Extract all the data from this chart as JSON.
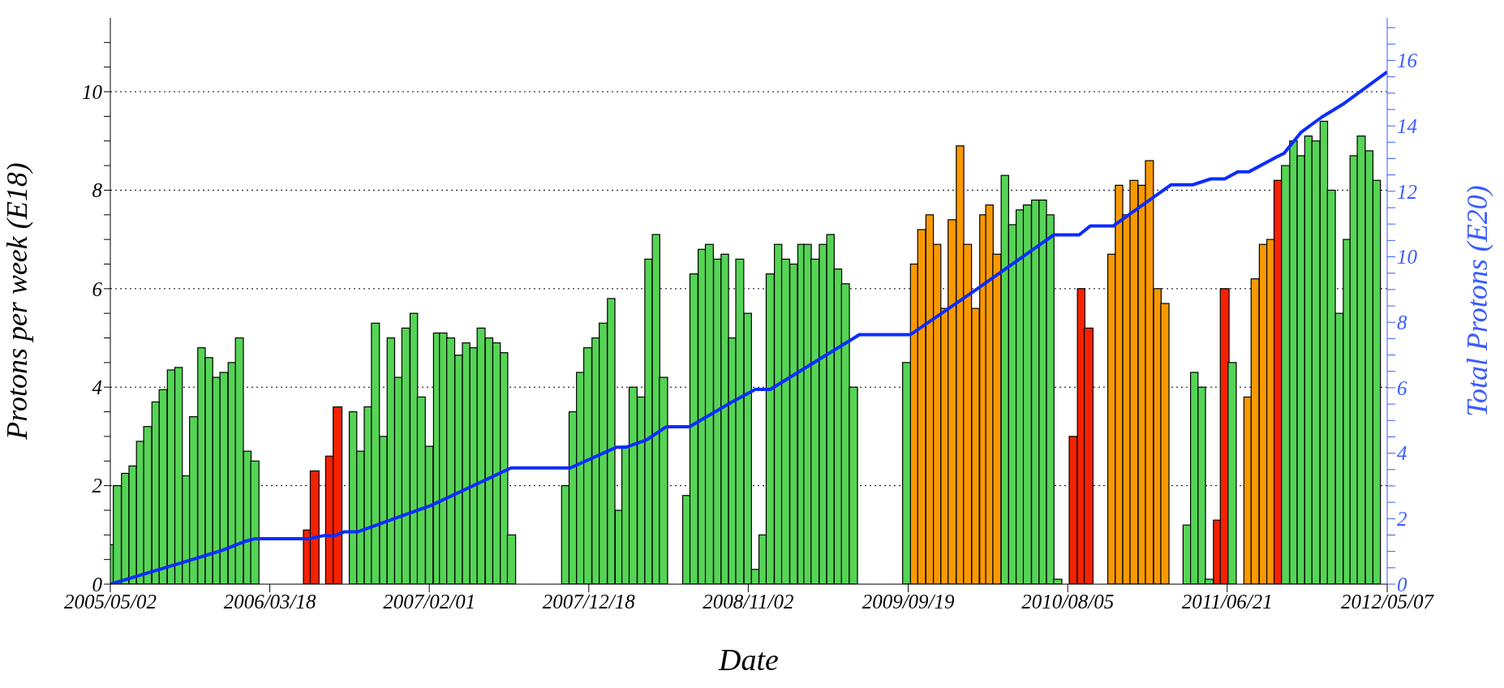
{
  "chart_data": {
    "type": "bar",
    "xlabel": "Date",
    "ylabel": "Protons per week (E18)",
    "y2label": "Total Protons (E20)",
    "xlim": [
      "2005-05-02",
      "2012-05-07"
    ],
    "xticks": [
      {
        "value": "2005-05-02",
        "label": "2005/05/02"
      },
      {
        "value": "2006-03-18",
        "label": "2006/03/18"
      },
      {
        "value": "2007-02-01",
        "label": "2007/02/01"
      },
      {
        "value": "2007-12-18",
        "label": "2007/12/18"
      },
      {
        "value": "2008-11-02",
        "label": "2008/11/02"
      },
      {
        "value": "2009-09-19",
        "label": "2009/09/19"
      },
      {
        "value": "2010-08-05",
        "label": "2010/08/05"
      },
      {
        "value": "2011-06-21",
        "label": "2011/06/21"
      },
      {
        "value": "2012-05-07",
        "label": "2012/05/07"
      }
    ],
    "ylim": [
      0,
      11.5
    ],
    "yticks": [
      0,
      {
        "value": 0.5,
        "label": null
      },
      {
        "value": 1,
        "label": null
      },
      {
        "value": 1.5,
        "label": null
      },
      2,
      {
        "value": 2.5,
        "label": null
      },
      {
        "value": 3,
        "label": null
      },
      {
        "value": 3.5,
        "label": null
      },
      4,
      {
        "value": 4.5,
        "label": null
      },
      {
        "value": 5,
        "label": null
      },
      {
        "value": 5.5,
        "label": null
      },
      6,
      {
        "value": 6.5,
        "label": null
      },
      {
        "value": 7,
        "label": null
      },
      {
        "value": 7.5,
        "label": null
      },
      8,
      {
        "value": 8.5,
        "label": null
      },
      {
        "value": 9,
        "label": null
      },
      {
        "value": 9.5,
        "label": null
      },
      10,
      {
        "value": 10.5,
        "label": null
      },
      {
        "value": 11,
        "label": null
      }
    ],
    "y2lim": [
      0,
      17.3
    ],
    "y2ticks": [
      0,
      {
        "value": 0.5,
        "label": null
      },
      {
        "value": 1,
        "label": null
      },
      {
        "value": 1.5,
        "label": null
      },
      2,
      {
        "value": 2.5,
        "label": null
      },
      {
        "value": 3,
        "label": null
      },
      {
        "value": 3.5,
        "label": null
      },
      4,
      {
        "value": 4.5,
        "label": null
      },
      {
        "value": 5,
        "label": null
      },
      {
        "value": 5.5,
        "label": null
      },
      6,
      {
        "value": 6.5,
        "label": null
      },
      {
        "value": 7,
        "label": null
      },
      {
        "value": 7.5,
        "label": null
      },
      8,
      {
        "value": 8.5,
        "label": null
      },
      {
        "value": 9,
        "label": null
      },
      {
        "value": 9.5,
        "label": null
      },
      10,
      {
        "value": 10.5,
        "label": null
      },
      {
        "value": 11,
        "label": null
      },
      {
        "value": 11.5,
        "label": null
      },
      12,
      {
        "value": 12.5,
        "label": null
      },
      {
        "value": 13,
        "label": null
      },
      {
        "value": 13.5,
        "label": null
      },
      14,
      {
        "value": 14.5,
        "label": null
      },
      {
        "value": 15,
        "label": null
      },
      {
        "value": 15.5,
        "label": null
      },
      16,
      {
        "value": 16.5,
        "label": null
      },
      {
        "value": 17,
        "label": null
      }
    ],
    "grid": "y",
    "series": [
      {
        "color": "#55d455",
        "x": [
          "2005-05-02",
          "2005-05-16",
          "2005-06-01",
          "2005-06-16",
          "2005-07-01",
          "2005-07-16",
          "2005-08-01",
          "2005-08-16",
          "2005-09-01",
          "2005-09-16",
          "2005-10-01",
          "2005-10-16",
          "2005-11-01",
          "2005-11-16",
          "2005-12-01",
          "2005-12-16",
          "2006-01-01",
          "2006-01-16",
          "2006-02-01",
          "2006-02-16",
          "2006-09-01",
          "2006-09-16",
          "2006-10-01",
          "2006-10-16",
          "2006-11-01",
          "2006-11-16",
          "2006-12-01",
          "2006-12-16",
          "2007-01-01",
          "2007-01-16",
          "2007-02-01",
          "2007-02-16",
          "2007-03-01",
          "2007-03-16",
          "2007-04-01",
          "2007-04-16",
          "2007-05-01",
          "2007-05-16",
          "2007-06-01",
          "2007-06-16",
          "2007-07-01",
          "2007-07-16",
          "2007-11-01",
          "2007-11-16",
          "2007-12-01",
          "2007-12-16",
          "2008-01-01",
          "2008-01-16",
          "2008-02-01",
          "2008-02-16",
          "2008-03-01",
          "2008-03-16",
          "2008-04-01",
          "2008-04-16",
          "2008-05-01",
          "2008-05-16",
          "2008-07-01",
          "2008-07-16",
          "2008-08-01",
          "2008-08-16",
          "2008-09-01",
          "2008-09-16",
          "2008-10-01",
          "2008-10-16",
          "2008-11-01",
          "2008-11-16",
          "2008-12-01",
          "2008-12-16",
          "2009-01-01",
          "2009-01-16",
          "2009-02-01",
          "2009-02-16",
          "2009-03-01",
          "2009-03-16",
          "2009-04-01",
          "2009-04-16",
          "2009-05-01",
          "2009-05-16",
          "2009-06-01",
          "2009-09-16",
          "2010-04-01",
          "2010-04-16",
          "2010-05-01",
          "2010-05-16",
          "2010-06-01",
          "2010-06-16",
          "2010-07-01",
          "2010-07-16",
          "2011-04-01",
          "2011-04-16",
          "2011-05-01",
          "2011-05-16",
          "2011-07-01",
          "2011-10-16",
          "2011-11-01",
          "2011-11-16",
          "2011-12-01",
          "2011-12-16",
          "2012-01-01",
          "2012-01-16",
          "2012-02-01",
          "2012-02-16",
          "2012-03-01",
          "2012-03-16",
          "2012-04-01",
          "2012-04-16"
        ],
        "values": [
          0.8,
          2.0,
          2.25,
          2.4,
          2.9,
          3.2,
          3.7,
          3.95,
          4.35,
          4.4,
          2.2,
          3.4,
          4.8,
          4.6,
          4.2,
          4.3,
          4.5,
          5.0,
          2.7,
          2.5,
          3.5,
          2.7,
          3.6,
          5.3,
          3.0,
          5.0,
          4.2,
          5.2,
          5.5,
          3.8,
          2.8,
          5.1,
          5.1,
          5.0,
          4.65,
          4.9,
          4.8,
          5.2,
          5.0,
          4.9,
          4.7,
          1.0,
          2.0,
          3.5,
          4.3,
          4.8,
          5.0,
          5.3,
          5.8,
          1.5,
          2.8,
          4.0,
          3.8,
          6.6,
          7.1,
          4.2,
          1.8,
          6.3,
          6.8,
          6.9,
          6.6,
          6.7,
          5.0,
          6.6,
          5.5,
          0.3,
          1.0,
          6.3,
          6.9,
          6.6,
          6.5,
          6.9,
          6.9,
          6.6,
          6.9,
          7.1,
          6.4,
          6.1,
          4.0,
          4.5,
          8.3,
          7.3,
          7.6,
          7.7,
          7.8,
          7.8,
          7.5,
          0.1,
          1.2,
          4.3,
          4.0,
          0.1,
          4.5,
          8.5,
          9.0,
          8.7,
          9.1,
          9.0,
          9.4,
          8.0,
          5.5,
          7.0,
          8.7,
          9.1,
          8.8,
          8.2
        ]
      },
      {
        "color": "#f52200",
        "x": [
          "2006-06-01",
          "2006-06-16",
          "2006-07-16",
          "2006-08-01",
          "2010-08-16",
          "2010-09-01",
          "2010-09-16",
          "2011-06-01",
          "2011-06-16",
          "2011-10-01"
        ],
        "values": [
          1.1,
          2.3,
          2.6,
          3.6,
          3.0,
          6.0,
          5.2,
          1.3,
          6.0,
          8.2
        ]
      },
      {
        "color": "#f99900",
        "x": [
          "2009-10-01",
          "2009-10-16",
          "2009-11-01",
          "2009-11-16",
          "2009-12-01",
          "2009-12-16",
          "2010-01-01",
          "2010-01-16",
          "2010-02-01",
          "2010-02-16",
          "2010-03-01",
          "2010-03-16",
          "2010-11-01",
          "2010-11-16",
          "2010-12-01",
          "2010-12-16",
          "2011-01-01",
          "2011-01-16",
          "2011-02-01",
          "2011-02-16",
          "2011-08-01",
          "2011-08-16",
          "2011-09-01",
          "2011-09-16"
        ],
        "values": [
          6.5,
          7.2,
          7.5,
          6.9,
          5.6,
          7.4,
          8.9,
          6.9,
          5.6,
          7.5,
          7.7,
          6.7,
          6.7,
          8.1,
          7.5,
          8.2,
          8.1,
          8.6,
          6.0,
          5.7,
          3.8,
          6.2,
          6.9,
          7.0
        ]
      },
      {
        "type": "line",
        "axis": "y2",
        "color": "#0a2cff",
        "x": [
          "2005-05-02",
          "2005-09-30",
          "2005-12-10",
          "2006-01-26",
          "2006-02-17",
          "2006-06-03",
          "2006-07-07",
          "2006-07-23",
          "2006-08-15",
          "2006-09-11",
          "2007-02-04",
          "2007-07-15",
          "2007-11-11",
          "2008-02-11",
          "2008-03-01",
          "2008-04-11",
          "2008-05-22",
          "2008-07-07",
          "2008-10-01",
          "2008-11-16",
          "2008-12-16",
          "2009-06-13",
          "2009-09-23",
          "2010-01-23",
          "2010-07-08",
          "2010-08-28",
          "2010-09-19",
          "2010-11-04",
          "2011-02-28",
          "2011-04-13",
          "2011-05-19",
          "2011-06-16",
          "2011-07-13",
          "2011-08-04",
          "2011-09-28",
          "2011-10-13",
          "2011-11-16",
          "2011-12-28",
          "2012-02-08",
          "2012-05-07"
        ],
        "values": [
          0,
          0.69,
          1.02,
          1.3,
          1.39,
          1.39,
          1.49,
          1.46,
          1.6,
          1.6,
          2.4,
          3.55,
          3.55,
          4.18,
          4.18,
          4.4,
          4.81,
          4.81,
          5.57,
          5.95,
          5.95,
          7.62,
          7.62,
          8.89,
          10.67,
          10.67,
          10.94,
          10.94,
          12.2,
          12.2,
          12.38,
          12.38,
          12.6,
          12.6,
          13.05,
          13.16,
          13.8,
          14.27,
          14.66,
          15.65
        ]
      }
    ]
  }
}
